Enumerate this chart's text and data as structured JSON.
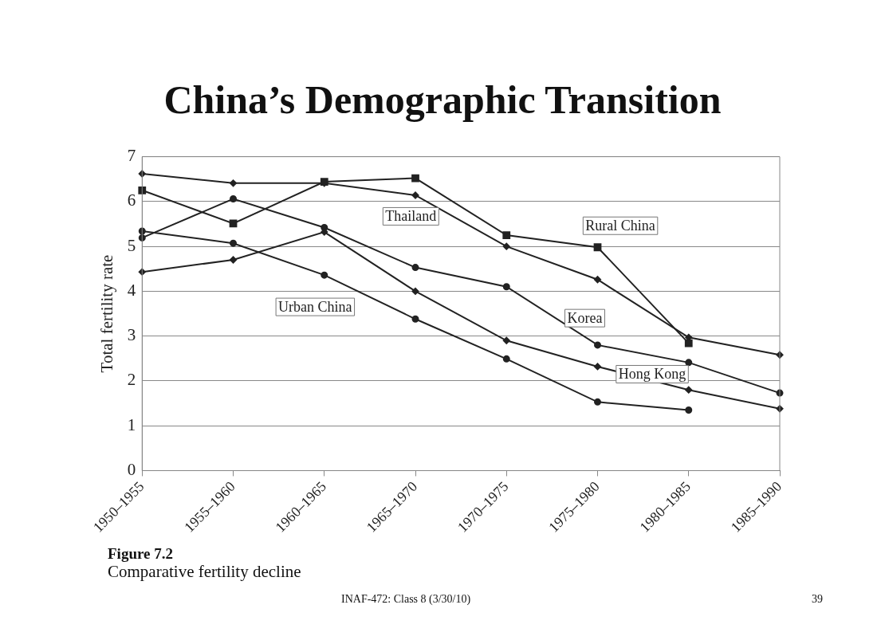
{
  "chart_data": {
    "type": "line",
    "title": "China’s Demographic Transition",
    "ylabel": "Total fertility rate",
    "categories": [
      "1950–1955",
      "1955–1960",
      "1960–1965",
      "1965–1970",
      "1970–1975",
      "1975–1980",
      "1980–1985",
      "1985–1990"
    ],
    "series": [
      {
        "name": "Thailand",
        "color": "#222222",
        "marker": "diamond",
        "values": [
          6.62,
          6.41,
          6.41,
          6.14,
          5.0,
          4.26,
          2.97,
          2.58
        ]
      },
      {
        "name": "Rural China",
        "color": "#222222",
        "marker": "square",
        "values": [
          6.25,
          5.51,
          6.44,
          6.52,
          5.25,
          4.98,
          2.84,
          null
        ]
      },
      {
        "name": "Korea",
        "color": "#222222",
        "marker": "circle",
        "values": [
          5.19,
          6.06,
          5.42,
          4.53,
          4.1,
          2.8,
          2.41,
          1.73
        ]
      },
      {
        "name": "Hong Kong",
        "color": "#222222",
        "marker": "diamond",
        "values": [
          4.43,
          4.7,
          5.32,
          4.0,
          2.9,
          2.32,
          1.8,
          1.38
        ]
      },
      {
        "name": "Urban China",
        "color": "#222222",
        "marker": "circle",
        "values": [
          5.34,
          5.07,
          4.36,
          3.38,
          2.49,
          1.53,
          1.35,
          null
        ]
      }
    ],
    "ylim": [
      0,
      7
    ],
    "yticks": [
      0,
      1,
      2,
      3,
      4,
      5,
      6,
      7
    ],
    "grid": "y",
    "legend": false,
    "annotations": [
      "Figure 7.2",
      "Comparative fertility decline",
      "INAF-472: Class 8 (3/30/10)",
      "39"
    ]
  }
}
